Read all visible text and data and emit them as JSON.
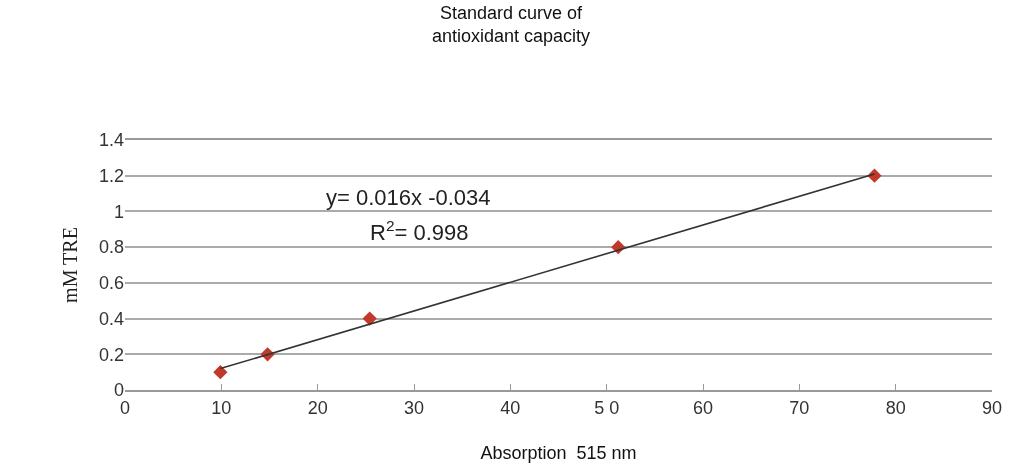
{
  "chart_data": {
    "type": "scatter",
    "title": "Standard curve of\nantioxidant capacity",
    "xlabel": "Absorption  515 nm",
    "ylabel": "mM TRE",
    "series": [
      {
        "color": "#c0392b",
        "x": [
          9.9,
          14.8,
          25.4,
          51.2,
          77.8
        ],
        "values": [
          0.1,
          0.2,
          0.4,
          0.8,
          1.2
        ],
        "marker": "diamond"
      },
      {
        "type": "line",
        "color": "#333333",
        "x": [
          9.9,
          77.8
        ],
        "values": [
          0.12,
          1.21
        ],
        "marker": "none",
        "line_style": "solid"
      }
    ],
    "annotations": [
      "y= 0.016x -0.034",
      "R$^{2}$= 0.998"
    ],
    "xlim": [
      0,
      90
    ],
    "xticks": [
      0,
      10,
      20,
      30,
      40,
      {
        "value": 50,
        "label": "5 0"
      },
      60,
      70,
      80,
      90
    ],
    "ylim": [
      0,
      1.4
    ],
    "yticks": [
      0,
      0.2,
      0.4,
      0.6,
      0.8,
      1,
      1.2,
      1.4
    ],
    "grid": "y"
  }
}
